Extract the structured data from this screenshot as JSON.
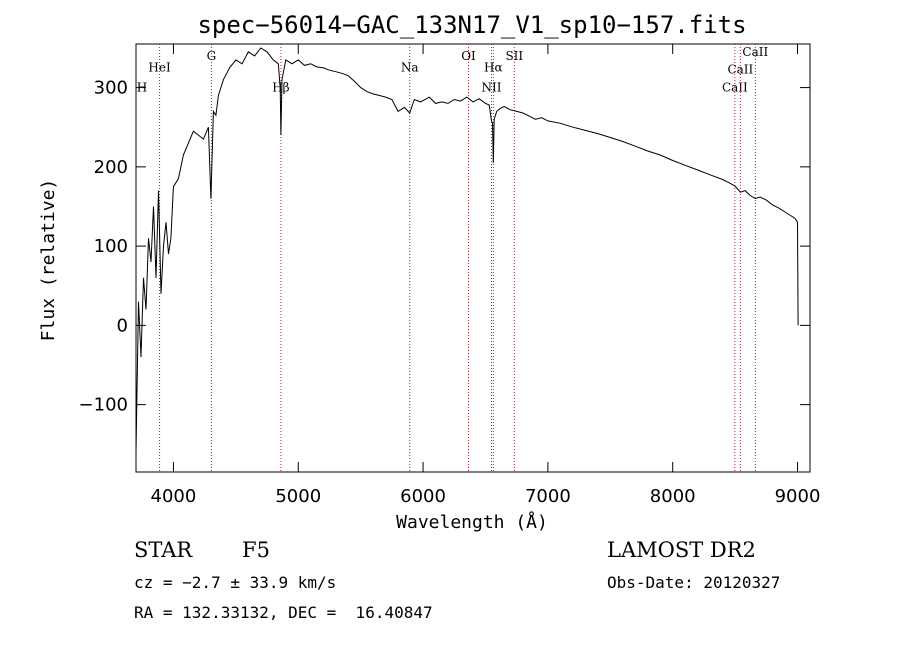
{
  "chart_data": {
    "type": "line",
    "title": "spec−56014−GAC_133N17_V1_sp10−157.fits",
    "xlabel": "Wavelength (Å)",
    "ylabel": "Flux (relative)",
    "xlim": [
      3700,
      9100
    ],
    "ylim": [
      -185,
      355
    ],
    "xticks": [
      {
        "value": 4000,
        "label": "4000"
      },
      {
        "value": 5000,
        "label": "5000"
      },
      {
        "value": 6000,
        "label": "6000"
      },
      {
        "value": 7000,
        "label": "7000"
      },
      {
        "value": 8000,
        "label": "8000"
      },
      {
        "value": 9000,
        "label": "9000"
      }
    ],
    "yticks": [
      {
        "value": -100,
        "label": "−100"
      },
      {
        "value": 0,
        "label": "0"
      },
      {
        "value": 100,
        "label": "100"
      },
      {
        "value": 200,
        "label": "200"
      },
      {
        "value": 300,
        "label": "300"
      }
    ],
    "lines": [
      {
        "name": "HeI",
        "wavelength": 3889,
        "label_flux": 320
      },
      {
        "name": "H",
        "wavelength": 3700,
        "label_flux": 295
      },
      {
        "name": "G",
        "wavelength": 4304,
        "label_flux": 335
      },
      {
        "name": "Hβ",
        "wavelength": 4861,
        "label_flux": 295
      },
      {
        "name": "Na",
        "wavelength": 5893,
        "label_flux": 320
      },
      {
        "name": "OI",
        "wavelength": 6364,
        "label_flux": 335
      },
      {
        "name": "Hα",
        "wavelength": 6563,
        "label_flux": 320
      },
      {
        "name": "NII",
        "wavelength": 6548,
        "label_flux": 295
      },
      {
        "name": "SII",
        "wavelength": 6731,
        "label_flux": 335
      },
      {
        "name": "CaII",
        "wavelength": 8498,
        "label_flux": 295
      },
      {
        "name": "CaII",
        "wavelength": 8542,
        "label_flux": 318
      },
      {
        "name": "CaII",
        "wavelength": 8662,
        "label_flux": 340
      }
    ],
    "spectrum": {
      "x": [
        3700,
        3720,
        3740,
        3760,
        3780,
        3800,
        3820,
        3840,
        3860,
        3880,
        3900,
        3920,
        3940,
        3960,
        3980,
        4000,
        4040,
        4080,
        4120,
        4160,
        4200,
        4240,
        4280,
        4300,
        4320,
        4340,
        4360,
        4400,
        4450,
        4500,
        4550,
        4600,
        4650,
        4700,
        4750,
        4800,
        4840,
        4855,
        4861,
        4870,
        4900,
        4950,
        5000,
        5050,
        5100,
        5150,
        5200,
        5250,
        5300,
        5350,
        5400,
        5450,
        5500,
        5550,
        5600,
        5650,
        5700,
        5750,
        5800,
        5850,
        5893,
        5930,
        5980,
        6050,
        6100,
        6150,
        6200,
        6250,
        6300,
        6350,
        6400,
        6450,
        6500,
        6530,
        6548,
        6556,
        6563,
        6570,
        6590,
        6620,
        6650,
        6700,
        6750,
        6800,
        6850,
        6900,
        6950,
        7000,
        7100,
        7200,
        7300,
        7400,
        7500,
        7600,
        7700,
        7800,
        7900,
        8000,
        8100,
        8200,
        8300,
        8400,
        8450,
        8498,
        8520,
        8542,
        8580,
        8620,
        8662,
        8700,
        8750,
        8800,
        8850,
        8900,
        8950,
        8980,
        9000,
        9005
      ],
      "y": [
        -160,
        30,
        -40,
        60,
        20,
        110,
        80,
        150,
        60,
        170,
        40,
        100,
        130,
        90,
        110,
        175,
        185,
        215,
        230,
        245,
        240,
        235,
        250,
        160,
        270,
        265,
        290,
        310,
        325,
        335,
        330,
        345,
        340,
        350,
        345,
        335,
        330,
        300,
        240,
        310,
        335,
        330,
        335,
        328,
        330,
        326,
        325,
        322,
        320,
        318,
        315,
        308,
        300,
        295,
        292,
        290,
        288,
        285,
        270,
        275,
        268,
        285,
        282,
        288,
        280,
        282,
        280,
        285,
        283,
        288,
        282,
        286,
        280,
        278,
        258,
        255,
        205,
        260,
        270,
        274,
        276,
        272,
        270,
        268,
        264,
        260,
        262,
        258,
        255,
        250,
        246,
        242,
        237,
        232,
        226,
        220,
        215,
        208,
        202,
        196,
        190,
        184,
        180,
        176,
        172,
        168,
        170,
        164,
        160,
        162,
        158,
        152,
        148,
        143,
        138,
        135,
        130,
        0
      ]
    }
  },
  "info": {
    "object_class": "STAR",
    "subclass": "F5",
    "survey": "LAMOST DR2",
    "cz": "cz = −2.7 ± 33.9 km/s",
    "obs_date": "Obs-Date: 20120327",
    "coords": "RA = 132.33132, DEC =  16.40847"
  }
}
